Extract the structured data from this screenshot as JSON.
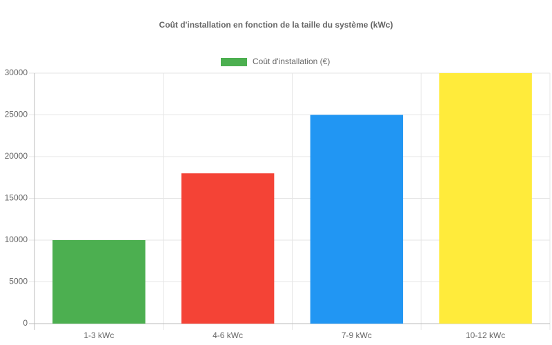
{
  "chart_data": {
    "type": "bar",
    "title": "Coût d'installation en fonction de la taille du système (kWc)",
    "categories": [
      "1-3 kWc",
      "4-6 kWc",
      "7-9 kWc",
      "10-12 kWc"
    ],
    "series": [
      {
        "name": "Coût d'installation (€)",
        "colors": [
          "#4caf50",
          "#f44336",
          "#2196f3",
          "#ffeb3b"
        ],
        "values": [
          10000,
          18000,
          25000,
          30000
        ]
      }
    ],
    "ylim": [
      0,
      30000
    ],
    "yticks": [
      0,
      5000,
      10000,
      15000,
      20000,
      25000,
      30000
    ],
    "grid": true,
    "legend": "top"
  }
}
